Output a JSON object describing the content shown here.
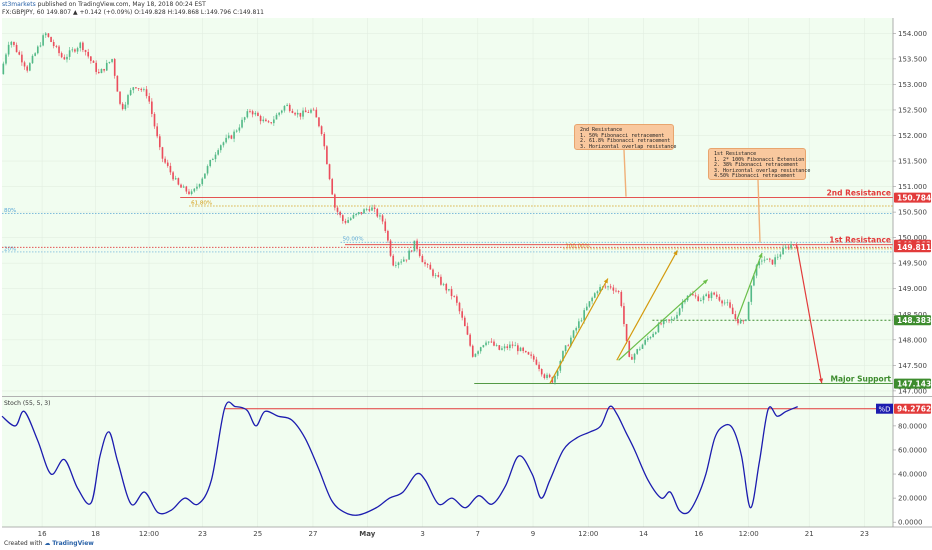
{
  "header": {
    "line1_author": "st3markets",
    "line1_rest": " published on TradingView.com, May 18, 2018 00:24 EST",
    "line2": "FX:GBPJPY, 60  149.807  ▲ +0.142 (+0.09%)  O:149.828  H:149.868  L:149.796  C:149.811"
  },
  "footer": {
    "created": "Created with",
    "brand": "TradingView"
  },
  "notes": {
    "resistance2": [
      "2nd Resistance",
      "1. 50% Fibonacci retracement",
      "2. 61.8% Fibonacci retracement",
      "3. Horizontal overlap resistance"
    ],
    "resistance1": [
      "1st Resistance",
      "1. 2* 100% Fibonacci Extension",
      "2. 38% Fibonacci retracement",
      "3. Horizontal overlap resistance",
      "4.50% Fibonacci retracement"
    ]
  },
  "colors": {
    "bg": "#f1fdf0",
    "up": "#53b987",
    "down": "#eb4d5c",
    "resistance": "#e23b3b",
    "support": "#3d8c2e",
    "fib": "#5aa8d6",
    "arrow_gold": "#d49a0e",
    "arrow_green": "#6bbf4a",
    "stoch": "#1c1caf",
    "badge_blue": "#1c1caf"
  },
  "chart_data": [
    {
      "type": "candlestick",
      "symbol": "FX:GBPJPY",
      "interval": "60",
      "ylim": [
        146.9,
        154.3
      ],
      "yticks": [
        147.0,
        147.5,
        148.0,
        148.5,
        149.0,
        149.5,
        150.0,
        150.5,
        151.0,
        151.5,
        152.0,
        152.5,
        153.0,
        153.5,
        154.0
      ],
      "ytick_labels": [
        "147.000",
        "147.500",
        "148.000",
        "148.500",
        "149.000",
        "149.500",
        "150.000",
        "150.500",
        "151.000",
        "151.500",
        "152.000",
        "152.500",
        "153.000",
        "153.500",
        "154.000"
      ],
      "xticks": [
        {
          "label": "16",
          "t": 0.045
        },
        {
          "label": "18",
          "t": 0.105
        },
        {
          "label": "12:00",
          "t": 0.165
        },
        {
          "label": "23",
          "t": 0.225
        },
        {
          "label": "25",
          "t": 0.287
        },
        {
          "label": "27",
          "t": 0.349
        },
        {
          "label": "May",
          "t": 0.41
        },
        {
          "label": "3",
          "t": 0.472
        },
        {
          "label": "7",
          "t": 0.534
        },
        {
          "label": "9",
          "t": 0.596
        },
        {
          "label": "12:00",
          "t": 0.658
        },
        {
          "label": "14",
          "t": 0.72
        },
        {
          "label": "16",
          "t": 0.782
        },
        {
          "label": "12:00",
          "t": 0.838
        },
        {
          "label": "21",
          "t": 0.906
        },
        {
          "label": "23",
          "t": 0.968
        }
      ],
      "path": [
        [
          0.0,
          153.2
        ],
        [
          0.01,
          153.9
        ],
        [
          0.03,
          153.3
        ],
        [
          0.05,
          154.0
        ],
        [
          0.07,
          153.5
        ],
        [
          0.09,
          153.8
        ],
        [
          0.11,
          153.2
        ],
        [
          0.125,
          153.5
        ],
        [
          0.135,
          152.5
        ],
        [
          0.15,
          153.0
        ],
        [
          0.165,
          152.8
        ],
        [
          0.18,
          151.6
        ],
        [
          0.2,
          151.0
        ],
        [
          0.215,
          150.85
        ],
        [
          0.23,
          151.3
        ],
        [
          0.245,
          151.8
        ],
        [
          0.26,
          152.0
        ],
        [
          0.28,
          152.5
        ],
        [
          0.3,
          152.2
        ],
        [
          0.32,
          152.6
        ],
        [
          0.335,
          152.4
        ],
        [
          0.35,
          152.5
        ],
        [
          0.36,
          152.1
        ],
        [
          0.375,
          150.6
        ],
        [
          0.385,
          150.3
        ],
        [
          0.4,
          150.45
        ],
        [
          0.415,
          150.6
        ],
        [
          0.43,
          150.3
        ],
        [
          0.44,
          149.5
        ],
        [
          0.455,
          149.6
        ],
        [
          0.465,
          149.9
        ],
        [
          0.475,
          149.5
        ],
        [
          0.49,
          149.2
        ],
        [
          0.5,
          149.0
        ],
        [
          0.51,
          148.8
        ],
        [
          0.52,
          148.3
        ],
        [
          0.53,
          147.7
        ],
        [
          0.545,
          148.0
        ],
        [
          0.56,
          147.8
        ],
        [
          0.575,
          147.9
        ],
        [
          0.59,
          147.7
        ],
        [
          0.6,
          147.6
        ],
        [
          0.61,
          147.3
        ],
        [
          0.62,
          147.2
        ],
        [
          0.63,
          147.7
        ],
        [
          0.645,
          148.2
        ],
        [
          0.66,
          148.7
        ],
        [
          0.67,
          149.0
        ],
        [
          0.685,
          149.05
        ],
        [
          0.695,
          148.9
        ],
        [
          0.705,
          147.6
        ],
        [
          0.715,
          147.8
        ],
        [
          0.725,
          148.0
        ],
        [
          0.74,
          148.3
        ],
        [
          0.755,
          148.4
        ],
        [
          0.77,
          148.9
        ],
        [
          0.785,
          148.8
        ],
        [
          0.8,
          148.9
        ],
        [
          0.815,
          148.7
        ],
        [
          0.825,
          148.4
        ],
        [
          0.835,
          148.3
        ],
        [
          0.845,
          149.3
        ],
        [
          0.855,
          149.6
        ],
        [
          0.865,
          149.5
        ],
        [
          0.875,
          149.7
        ],
        [
          0.885,
          149.85
        ],
        [
          0.893,
          149.9
        ]
      ],
      "levels": [
        {
          "name": "2nd Resistance",
          "value": 150.784,
          "label": "150.784",
          "role": "resistance"
        },
        {
          "name": "1st Resistance",
          "value": 149.862,
          "label": "149.862",
          "role": "resistance"
        },
        {
          "name": "",
          "value": 149.811,
          "label": "149.811",
          "role": "price"
        },
        {
          "name": "",
          "value": 148.383,
          "label": "148.383",
          "role": "support-minor"
        },
        {
          "name": "Major Support",
          "value": 147.143,
          "label": "147.143",
          "role": "support"
        }
      ],
      "fib_lines": [
        {
          "label": "61.80%",
          "value": 150.62,
          "tx0": 0.21,
          "tx1": 1.0,
          "color": "gold"
        },
        {
          "label": "80%",
          "value": 150.47,
          "tx0": 0.0,
          "tx1": 1.0,
          "color": "blue"
        },
        {
          "label": "50.00%",
          "value": 149.91,
          "tx0": 0.38,
          "tx1": 1.0,
          "color": "blue"
        },
        {
          "label": "100.00%",
          "value": 149.78,
          "tx0": 0.63,
          "tx1": 1.0,
          "color": "gold"
        },
        {
          "label": "20%",
          "value": 149.72,
          "tx0": 0.0,
          "tx1": 1.0,
          "color": "blue"
        }
      ],
      "arrows": [
        {
          "from": [
            0.615,
            147.15
          ],
          "to": [
            0.68,
            149.2
          ],
          "color": "gold"
        },
        {
          "from": [
            0.69,
            147.6
          ],
          "to": [
            0.758,
            149.75
          ],
          "color": "gold"
        },
        {
          "from": [
            0.692,
            147.6
          ],
          "to": [
            0.792,
            149.18
          ],
          "color": "green"
        },
        {
          "from": [
            0.825,
            148.4
          ],
          "to": [
            0.853,
            149.7
          ],
          "color": "green"
        },
        {
          "from": [
            0.892,
            149.85
          ],
          "to": [
            0.92,
            147.15
          ],
          "color": "red"
        }
      ]
    },
    {
      "type": "line",
      "title": "Stoch (55, 5, 3)",
      "ylim": [
        -4,
        104
      ],
      "yticks": [
        0,
        20,
        40,
        60,
        80
      ],
      "ytick_labels": [
        "0.0000",
        "20.0000",
        "40.0000",
        "60.0000",
        "80.0000"
      ],
      "level": {
        "value": 94.2762,
        "label": "94.2762",
        "badge": "%D"
      },
      "series": [
        {
          "values": [
            [
              0.0,
              88
            ],
            [
              0.015,
              80
            ],
            [
              0.025,
              92
            ],
            [
              0.04,
              68
            ],
            [
              0.055,
              40
            ],
            [
              0.07,
              52
            ],
            [
              0.085,
              28
            ],
            [
              0.1,
              16
            ],
            [
              0.11,
              55
            ],
            [
              0.12,
              75
            ],
            [
              0.13,
              50
            ],
            [
              0.145,
              15
            ],
            [
              0.16,
              25
            ],
            [
              0.175,
              8
            ],
            [
              0.19,
              10
            ],
            [
              0.205,
              20
            ],
            [
              0.22,
              15
            ],
            [
              0.235,
              35
            ],
            [
              0.25,
              95
            ],
            [
              0.262,
              96
            ],
            [
              0.275,
              93
            ],
            [
              0.285,
              80
            ],
            [
              0.295,
              92
            ],
            [
              0.31,
              88
            ],
            [
              0.325,
              85
            ],
            [
              0.34,
              70
            ],
            [
              0.355,
              45
            ],
            [
              0.37,
              18
            ],
            [
              0.385,
              8
            ],
            [
              0.4,
              6
            ],
            [
              0.42,
              12
            ],
            [
              0.435,
              20
            ],
            [
              0.45,
              25
            ],
            [
              0.465,
              40
            ],
            [
              0.475,
              35
            ],
            [
              0.49,
              15
            ],
            [
              0.505,
              20
            ],
            [
              0.52,
              12
            ],
            [
              0.535,
              22
            ],
            [
              0.55,
              15
            ],
            [
              0.565,
              30
            ],
            [
              0.58,
              55
            ],
            [
              0.595,
              40
            ],
            [
              0.605,
              20
            ],
            [
              0.615,
              35
            ],
            [
              0.63,
              60
            ],
            [
              0.645,
              70
            ],
            [
              0.66,
              75
            ],
            [
              0.672,
              80
            ],
            [
              0.682,
              96
            ],
            [
              0.69,
              90
            ],
            [
              0.7,
              75
            ],
            [
              0.71,
              60
            ],
            [
              0.725,
              35
            ],
            [
              0.74,
              20
            ],
            [
              0.75,
              25
            ],
            [
              0.76,
              10
            ],
            [
              0.77,
              8
            ],
            [
              0.78,
              20
            ],
            [
              0.79,
              40
            ],
            [
              0.8,
              70
            ],
            [
              0.81,
              80
            ],
            [
              0.82,
              78
            ],
            [
              0.83,
              55
            ],
            [
              0.84,
              12
            ],
            [
              0.85,
              50
            ],
            [
              0.86,
              94
            ],
            [
              0.87,
              88
            ],
            [
              0.88,
              92
            ],
            [
              0.893,
              96
            ]
          ]
        }
      ]
    }
  ]
}
